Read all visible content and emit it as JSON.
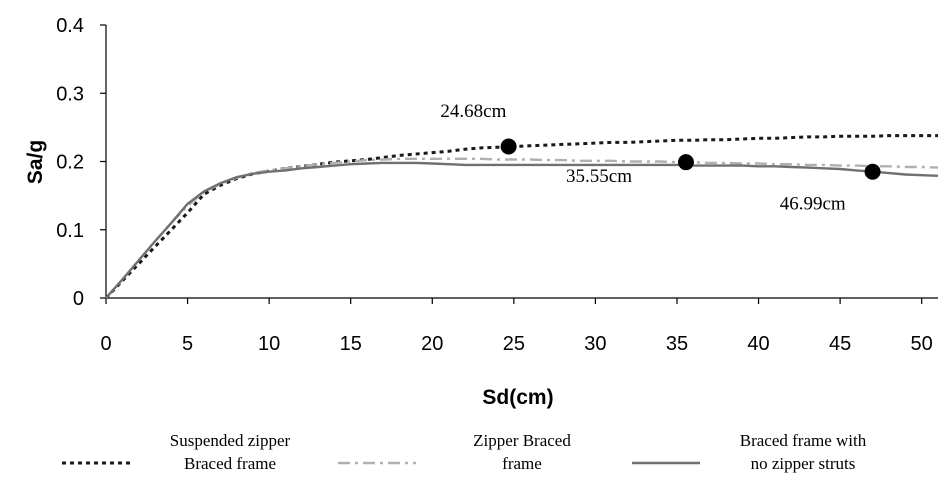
{
  "chart_data": {
    "type": "line",
    "title": "",
    "xlabel": "Sd(cm)",
    "ylabel": "Sa/g",
    "xlim": [
      0,
      51
    ],
    "ylim": [
      0,
      0.4
    ],
    "xticks": [
      0,
      5,
      10,
      15,
      20,
      25,
      30,
      35,
      40,
      45,
      50
    ],
    "yticks": [
      0,
      0.1,
      0.2,
      0.3,
      0.4
    ],
    "ytick_labels": [
      "0",
      "0.1",
      "0.2",
      "0.3",
      "0.4"
    ],
    "grid": false,
    "legend_position": "bottom",
    "series": [
      {
        "name": "Suspended zipper Braced frame",
        "name_lines": [
          "Suspended zipper",
          "Braced frame"
        ],
        "style": "dotted",
        "color": "#1a1a1a",
        "x": [
          0,
          1,
          2,
          3,
          4,
          5,
          6,
          7,
          8,
          9,
          10,
          11,
          12,
          13,
          14,
          15,
          16,
          17,
          18,
          19,
          20,
          21,
          22,
          23,
          24,
          25,
          26,
          27,
          28,
          29,
          30,
          31,
          32,
          33,
          34,
          35,
          36,
          37,
          38,
          39,
          40,
          41,
          42,
          43,
          44,
          45,
          46,
          47,
          48,
          49,
          50,
          51
        ],
        "y": [
          0,
          0.025,
          0.05,
          0.075,
          0.1,
          0.125,
          0.152,
          0.165,
          0.175,
          0.182,
          0.186,
          0.19,
          0.193,
          0.196,
          0.199,
          0.201,
          0.203,
          0.206,
          0.209,
          0.211,
          0.213,
          0.215,
          0.218,
          0.22,
          0.221,
          0.222,
          0.223,
          0.224,
          0.225,
          0.226,
          0.227,
          0.228,
          0.228,
          0.229,
          0.23,
          0.231,
          0.231,
          0.232,
          0.232,
          0.233,
          0.234,
          0.234,
          0.235,
          0.236,
          0.236,
          0.237,
          0.237,
          0.237,
          0.238,
          0.238,
          0.238,
          0.238
        ]
      },
      {
        "name": "Zipper Braced frame",
        "name_lines": [
          "Zipper Braced",
          "frame"
        ],
        "style": "dashdot",
        "color": "#b0b0b0",
        "x": [
          0,
          1,
          2,
          3,
          4,
          5,
          6,
          7,
          8,
          9,
          10,
          11,
          12,
          13,
          14,
          15,
          16,
          17,
          18,
          19,
          20,
          21,
          22,
          23,
          24,
          25,
          26,
          27,
          28,
          29,
          30,
          31,
          32,
          33,
          34,
          35,
          36,
          37,
          38,
          39,
          40,
          41,
          42,
          43,
          44,
          45,
          46,
          47,
          48,
          49,
          50,
          51
        ],
        "y": [
          0,
          0.027,
          0.055,
          0.083,
          0.11,
          0.135,
          0.155,
          0.167,
          0.176,
          0.183,
          0.187,
          0.19,
          0.193,
          0.196,
          0.198,
          0.2,
          0.202,
          0.203,
          0.204,
          0.204,
          0.204,
          0.204,
          0.204,
          0.204,
          0.203,
          0.203,
          0.203,
          0.202,
          0.202,
          0.201,
          0.201,
          0.201,
          0.2,
          0.2,
          0.2,
          0.199,
          0.199,
          0.198,
          0.198,
          0.197,
          0.197,
          0.196,
          0.196,
          0.195,
          0.195,
          0.194,
          0.194,
          0.193,
          0.193,
          0.192,
          0.192,
          0.191
        ]
      },
      {
        "name": "Braced frame with no zipper struts",
        "name_lines": [
          "Braced frame with",
          "no zipper struts"
        ],
        "style": "solid",
        "color": "#707070",
        "x": [
          0,
          1,
          2,
          3,
          4,
          5,
          6,
          7,
          8,
          9,
          10,
          11,
          12,
          13,
          14,
          15,
          16,
          17,
          18,
          19,
          20,
          21,
          22,
          23,
          24,
          25,
          26,
          27,
          28,
          29,
          30,
          31,
          32,
          33,
          34,
          35,
          36,
          37,
          38,
          39,
          40,
          41,
          42,
          43,
          44,
          45,
          46,
          47,
          48,
          49,
          50,
          51
        ],
        "y": [
          0,
          0.027,
          0.055,
          0.083,
          0.11,
          0.138,
          0.156,
          0.168,
          0.177,
          0.182,
          0.185,
          0.187,
          0.19,
          0.192,
          0.194,
          0.196,
          0.197,
          0.198,
          0.198,
          0.198,
          0.197,
          0.196,
          0.195,
          0.195,
          0.195,
          0.195,
          0.195,
          0.195,
          0.195,
          0.195,
          0.195,
          0.195,
          0.195,
          0.195,
          0.195,
          0.195,
          0.194,
          0.194,
          0.194,
          0.194,
          0.193,
          0.193,
          0.192,
          0.191,
          0.19,
          0.189,
          0.187,
          0.185,
          0.183,
          0.181,
          0.18,
          0.179
        ]
      }
    ],
    "markers": [
      {
        "x": 24.68,
        "y": 0.222
      },
      {
        "x": 35.55,
        "y": 0.199
      },
      {
        "x": 46.99,
        "y": 0.185
      }
    ],
    "annotations": [
      {
        "text": "24.68cm",
        "x": 20.5,
        "y": 0.265
      },
      {
        "text": "35.55cm",
        "x": 28.2,
        "y": 0.17
      },
      {
        "text": "46.99cm",
        "x": 41.3,
        "y": 0.13
      }
    ]
  }
}
